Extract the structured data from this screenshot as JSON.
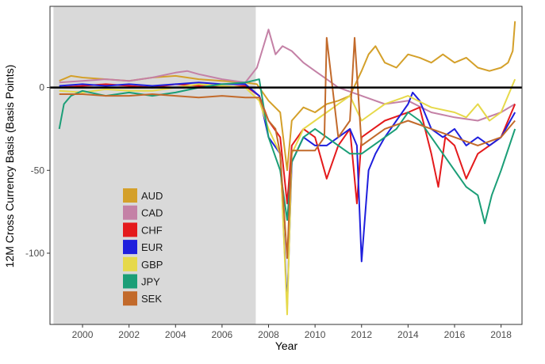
{
  "chart_data": {
    "type": "line",
    "title": "",
    "xlabel": "Year",
    "ylabel": "12M Cross Currency Basis (Basis Points)",
    "xlim": [
      1998.6,
      2018.9
    ],
    "ylim": [
      -143,
      49
    ],
    "x_ticks": [
      2000,
      2002,
      2004,
      2006,
      2008,
      2010,
      2012,
      2014,
      2016,
      2018
    ],
    "x_tick_labels": [
      "2000",
      "2002",
      "2004",
      "2006",
      "2008",
      "2010",
      "2012",
      "2014",
      "2016",
      "2018"
    ],
    "y_ticks": [
      0,
      -50,
      -100
    ],
    "y_tick_labels": [
      "0",
      "-50",
      "-100"
    ],
    "grid": false,
    "shaded_region": {
      "x_start": 1998.75,
      "x_end": 2007.45,
      "color": "#d9d9d9"
    },
    "zero_line": {
      "y": 0,
      "color": "#000000"
    },
    "legend_position": "bottom-left inside plot",
    "series": [
      {
        "name": "AUD",
        "color": "#d4a02a",
        "x": [
          1999.0,
          1999.5,
          2000.0,
          2001.0,
          2002.0,
          2003.0,
          2004.0,
          2005.0,
          2006.0,
          2007.0,
          2007.5,
          2008.0,
          2008.5,
          2008.8,
          2009.0,
          2009.5,
          2010.0,
          2010.5,
          2011.0,
          2011.5,
          2012.0,
          2012.3,
          2012.6,
          2013.0,
          2013.5,
          2014.0,
          2014.5,
          2015.0,
          2015.5,
          2016.0,
          2016.5,
          2017.0,
          2017.5,
          2018.0,
          2018.3,
          2018.5,
          2018.6
        ],
        "values": [
          4,
          7,
          6,
          5,
          4,
          6,
          7,
          5,
          4,
          3,
          2,
          -8,
          -15,
          -50,
          -20,
          -12,
          -15,
          -10,
          -8,
          -5,
          10,
          20,
          25,
          15,
          12,
          20,
          18,
          15,
          20,
          15,
          18,
          12,
          10,
          12,
          15,
          22,
          40
        ]
      },
      {
        "name": "CAD",
        "color": "#c481a6",
        "x": [
          1999.0,
          2000.0,
          2001.0,
          2002.0,
          2003.0,
          2004.0,
          2004.5,
          2005.0,
          2006.0,
          2007.0,
          2007.5,
          2008.0,
          2008.3,
          2008.6,
          2009.0,
          2009.5,
          2010.0,
          2010.5,
          2011.0,
          2012.0,
          2013.0,
          2014.0,
          2015.0,
          2016.0,
          2017.0,
          2018.0,
          2018.6
        ],
        "values": [
          3,
          4,
          5,
          4,
          6,
          9,
          10,
          8,
          5,
          3,
          12,
          35,
          20,
          25,
          22,
          15,
          10,
          5,
          0,
          -5,
          -10,
          -8,
          -15,
          -18,
          -20,
          -15,
          -10
        ]
      },
      {
        "name": "CHF",
        "color": "#e41a1c",
        "x": [
          1999.0,
          2000.0,
          2001.0,
          2002.0,
          2003.0,
          2004.0,
          2005.0,
          2006.0,
          2007.0,
          2007.6,
          2008.0,
          2008.5,
          2008.8,
          2009.0,
          2009.5,
          2010.0,
          2010.5,
          2011.0,
          2011.5,
          2011.8,
          2012.0,
          2012.5,
          2013.0,
          2014.0,
          2014.5,
          2015.0,
          2015.3,
          2015.6,
          2016.0,
          2016.5,
          2017.0,
          2017.5,
          2018.0,
          2018.6
        ],
        "values": [
          0,
          1,
          2,
          1,
          0,
          2,
          1,
          0,
          1,
          -5,
          -20,
          -30,
          -70,
          -35,
          -25,
          -30,
          -55,
          -35,
          -25,
          -70,
          -30,
          -25,
          -20,
          -15,
          -12,
          -40,
          -60,
          -30,
          -35,
          -55,
          -40,
          -35,
          -30,
          -10
        ]
      },
      {
        "name": "EUR",
        "color": "#1f1fdd",
        "x": [
          1999.0,
          2000.0,
          2001.0,
          2002.0,
          2003.0,
          2004.0,
          2005.0,
          2006.0,
          2007.0,
          2007.6,
          2008.0,
          2008.5,
          2008.8,
          2009.0,
          2009.5,
          2010.0,
          2010.5,
          2011.0,
          2011.5,
          2011.8,
          2012.0,
          2012.3,
          2012.6,
          2013.0,
          2013.5,
          2014.0,
          2014.2,
          2014.5,
          2015.0,
          2015.5,
          2016.0,
          2016.5,
          2017.0,
          2017.5,
          2018.0,
          2018.6
        ],
        "values": [
          1,
          2,
          1,
          2,
          1,
          2,
          3,
          2,
          2,
          -5,
          -30,
          -40,
          -132,
          -45,
          -30,
          -35,
          -35,
          -30,
          -25,
          -35,
          -105,
          -50,
          -40,
          -30,
          -20,
          -10,
          -3,
          -8,
          -25,
          -30,
          -25,
          -35,
          -30,
          -35,
          -30,
          -15
        ]
      },
      {
        "name": "GBP",
        "color": "#e6d94a",
        "x": [
          1999.0,
          2000.0,
          2001.0,
          2002.0,
          2003.0,
          2004.0,
          2005.0,
          2006.0,
          2007.0,
          2007.6,
          2008.0,
          2008.5,
          2008.8,
          2009.0,
          2009.5,
          2010.0,
          2010.5,
          2011.0,
          2011.5,
          2012.0,
          2012.5,
          2013.0,
          2014.0,
          2015.0,
          2016.0,
          2016.5,
          2017.0,
          2017.5,
          2018.0,
          2018.6
        ],
        "values": [
          -2,
          -3,
          -1,
          -2,
          -2,
          0,
          2,
          1,
          0,
          -8,
          -25,
          -40,
          -137,
          -40,
          -25,
          -20,
          -15,
          -10,
          -5,
          -20,
          -15,
          -10,
          -5,
          -12,
          -15,
          -18,
          -10,
          -20,
          -15,
          5
        ]
      },
      {
        "name": "JPY",
        "color": "#1b9e77",
        "x": [
          1999.0,
          1999.2,
          1999.5,
          2000.0,
          2001.0,
          2002.0,
          2003.0,
          2004.0,
          2005.0,
          2006.0,
          2007.0,
          2007.6,
          2008.0,
          2008.5,
          2008.8,
          2009.0,
          2009.5,
          2010.0,
          2010.5,
          2011.0,
          2011.5,
          2012.0,
          2012.5,
          2013.0,
          2013.5,
          2014.0,
          2014.5,
          2015.0,
          2015.5,
          2016.0,
          2016.5,
          2017.0,
          2017.3,
          2017.6,
          2018.0,
          2018.6
        ],
        "values": [
          -25,
          -10,
          -5,
          -2,
          -5,
          -3,
          -5,
          -3,
          0,
          2,
          3,
          5,
          -30,
          -50,
          -80,
          -45,
          -30,
          -25,
          -30,
          -35,
          -40,
          -40,
          -35,
          -30,
          -25,
          -15,
          -20,
          -30,
          -40,
          -50,
          -60,
          -65,
          -82,
          -65,
          -50,
          -25
        ]
      },
      {
        "name": "SEK",
        "color": "#c26a2b",
        "x": [
          1999.0,
          2000.0,
          2001.0,
          2002.0,
          2003.0,
          2004.0,
          2005.0,
          2006.0,
          2007.0,
          2007.6,
          2008.0,
          2008.3,
          2008.5,
          2008.8,
          2009.0,
          2009.5,
          2010.0,
          2010.4,
          2010.5,
          2011.0,
          2011.5,
          2011.7,
          2012.0,
          2012.5,
          2013.0,
          2014.0,
          2015.0,
          2016.0,
          2017.0,
          2018.0,
          2018.6
        ],
        "values": [
          -4,
          -4,
          -5,
          -5,
          -4,
          -5,
          -6,
          -5,
          -6,
          -6,
          -20,
          -25,
          -40,
          -103,
          -38,
          -38,
          -38,
          -30,
          30,
          -30,
          -20,
          30,
          -35,
          -30,
          -25,
          -20,
          -25,
          -30,
          -35,
          -30,
          -20
        ]
      }
    ]
  }
}
